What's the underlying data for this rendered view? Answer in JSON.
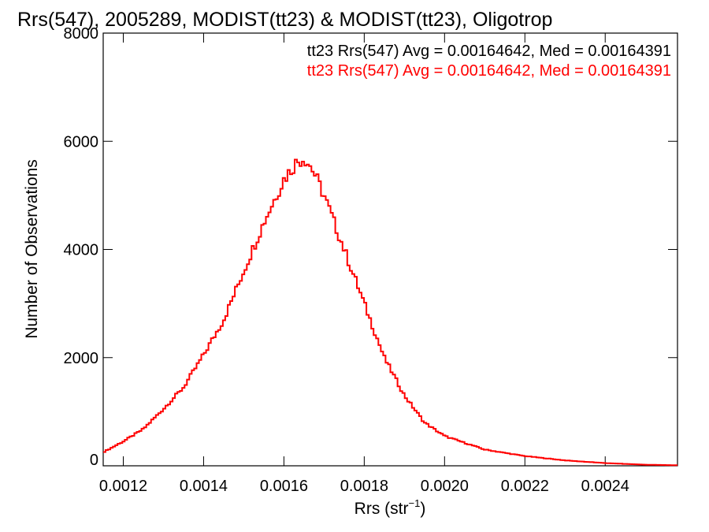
{
  "chart_data": {
    "type": "line",
    "title": "Rrs(547), 2005289, MODIST(tt23) & MODIST(tt23), Oligotrop",
    "xlabel_main": "Rrs (str",
    "xlabel_sup": "−1",
    "xlabel_tail": ")",
    "ylabel": "Number of Observations",
    "xlim": [
      0.00115,
      0.00258
    ],
    "ylim": [
      0,
      8000
    ],
    "x_ticks": [
      0.0012,
      0.0014,
      0.0016,
      0.0018,
      0.002,
      0.0022,
      0.0024
    ],
    "x_tick_labels": [
      "0.0012",
      "0.0014",
      "0.0016",
      "0.0018",
      "0.0020",
      "0.0022",
      "0.0024"
    ],
    "y_ticks": [
      0,
      2000,
      4000,
      6000,
      8000
    ],
    "y_tick_labels": [
      "0",
      "2000",
      "4000",
      "6000",
      "8000"
    ],
    "grid": false,
    "legend_position": "top-right",
    "annotations": [
      {
        "text": "tt23 Rrs(547) Avg = 0.00164642, Med = 0.00164391",
        "color": "#000000"
      },
      {
        "text": "tt23 Rrs(547) Avg = 0.00164642, Med = 0.00164391",
        "color": "#ff0000"
      }
    ],
    "series": [
      {
        "color": "#ff0000",
        "style": "step",
        "x": [
          0.00115,
          0.0012,
          0.00125,
          0.0013,
          0.00135,
          0.0014,
          0.00145,
          0.0015,
          0.00155,
          0.0016,
          0.00163,
          0.00165,
          0.00167,
          0.0017,
          0.00175,
          0.0018,
          0.00185,
          0.0019,
          0.00195,
          0.002,
          0.0021,
          0.0022,
          0.0023,
          0.0024,
          0.0025,
          0.00258
        ],
        "values": [
          250,
          450,
          680,
          1050,
          1450,
          2050,
          2700,
          3600,
          4500,
          5300,
          5600,
          5700,
          5500,
          5000,
          4000,
          3000,
          2000,
          1300,
          800,
          550,
          300,
          180,
          100,
          50,
          20,
          10
        ]
      }
    ]
  }
}
